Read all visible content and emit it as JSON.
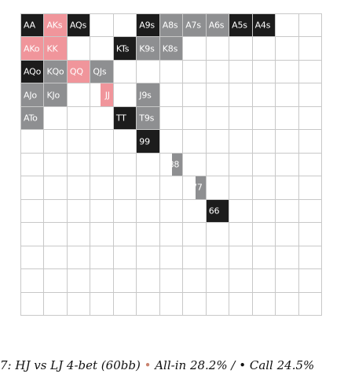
{
  "colors": {
    "allin": "#f0959b",
    "call": "#1c1c1c",
    "mixed": "#8e8f91",
    "empty": "#ffffff"
  },
  "caption": {
    "prefix": "7: HJ vs LJ 4-bet (60bb)",
    "allin_label": "All-in 28.2% /",
    "call_label": "Call 24.5%",
    "bullet": "•"
  },
  "chart_data": {
    "type": "heatmap",
    "ranks": [
      "A",
      "K",
      "Q",
      "J",
      "T",
      "9",
      "8",
      "7",
      "6",
      "5",
      "4",
      "3",
      "2"
    ],
    "cells": [
      {
        "row": 0,
        "col": 0,
        "hand": "AA",
        "action": "call"
      },
      {
        "row": 0,
        "col": 1,
        "hand": "AKs",
        "action": "allin"
      },
      {
        "row": 0,
        "col": 2,
        "hand": "AQs",
        "action": "call"
      },
      {
        "row": 0,
        "col": 5,
        "hand": "A9s",
        "action": "call"
      },
      {
        "row": 0,
        "col": 6,
        "hand": "A8s",
        "action": "mixed"
      },
      {
        "row": 0,
        "col": 7,
        "hand": "A7s",
        "action": "mixed"
      },
      {
        "row": 0,
        "col": 8,
        "hand": "A6s",
        "action": "mixed"
      },
      {
        "row": 0,
        "col": 9,
        "hand": "A5s",
        "action": "call"
      },
      {
        "row": 0,
        "col": 10,
        "hand": "A4s",
        "action": "call"
      },
      {
        "row": 1,
        "col": 0,
        "hand": "AKo",
        "action": "allin"
      },
      {
        "row": 1,
        "col": 1,
        "hand": "KK",
        "action": "allin"
      },
      {
        "row": 1,
        "col": 4,
        "hand": "KTs",
        "action": "call"
      },
      {
        "row": 1,
        "col": 5,
        "hand": "K9s",
        "action": "mixed"
      },
      {
        "row": 1,
        "col": 6,
        "hand": "K8s",
        "action": "mixed"
      },
      {
        "row": 2,
        "col": 0,
        "hand": "AQo",
        "action": "call"
      },
      {
        "row": 2,
        "col": 1,
        "hand": "KQo",
        "action": "mixed"
      },
      {
        "row": 2,
        "col": 2,
        "hand": "QQ",
        "action": "allin"
      },
      {
        "row": 2,
        "col": 3,
        "hand": "QJs",
        "action": "mixed"
      },
      {
        "row": 3,
        "col": 0,
        "hand": "AJo",
        "action": "mixed"
      },
      {
        "row": 3,
        "col": 1,
        "hand": "KJo",
        "action": "mixed"
      },
      {
        "row": 3,
        "col": 3,
        "hand": "JJ",
        "action": "allin",
        "fill": 0.55
      },
      {
        "row": 3,
        "col": 5,
        "hand": "J9s",
        "action": "mixed"
      },
      {
        "row": 4,
        "col": 0,
        "hand": "ATo",
        "action": "mixed"
      },
      {
        "row": 4,
        "col": 4,
        "hand": "TT",
        "action": "call"
      },
      {
        "row": 4,
        "col": 5,
        "hand": "T9s",
        "action": "mixed"
      },
      {
        "row": 5,
        "col": 5,
        "hand": "99",
        "action": "call"
      },
      {
        "row": 6,
        "col": 6,
        "hand": "88",
        "action": "mixed",
        "fill": 0.45
      },
      {
        "row": 7,
        "col": 7,
        "hand": "77",
        "action": "mixed",
        "fill": 0.45
      },
      {
        "row": 8,
        "col": 8,
        "hand": "66",
        "action": "call"
      }
    ]
  }
}
